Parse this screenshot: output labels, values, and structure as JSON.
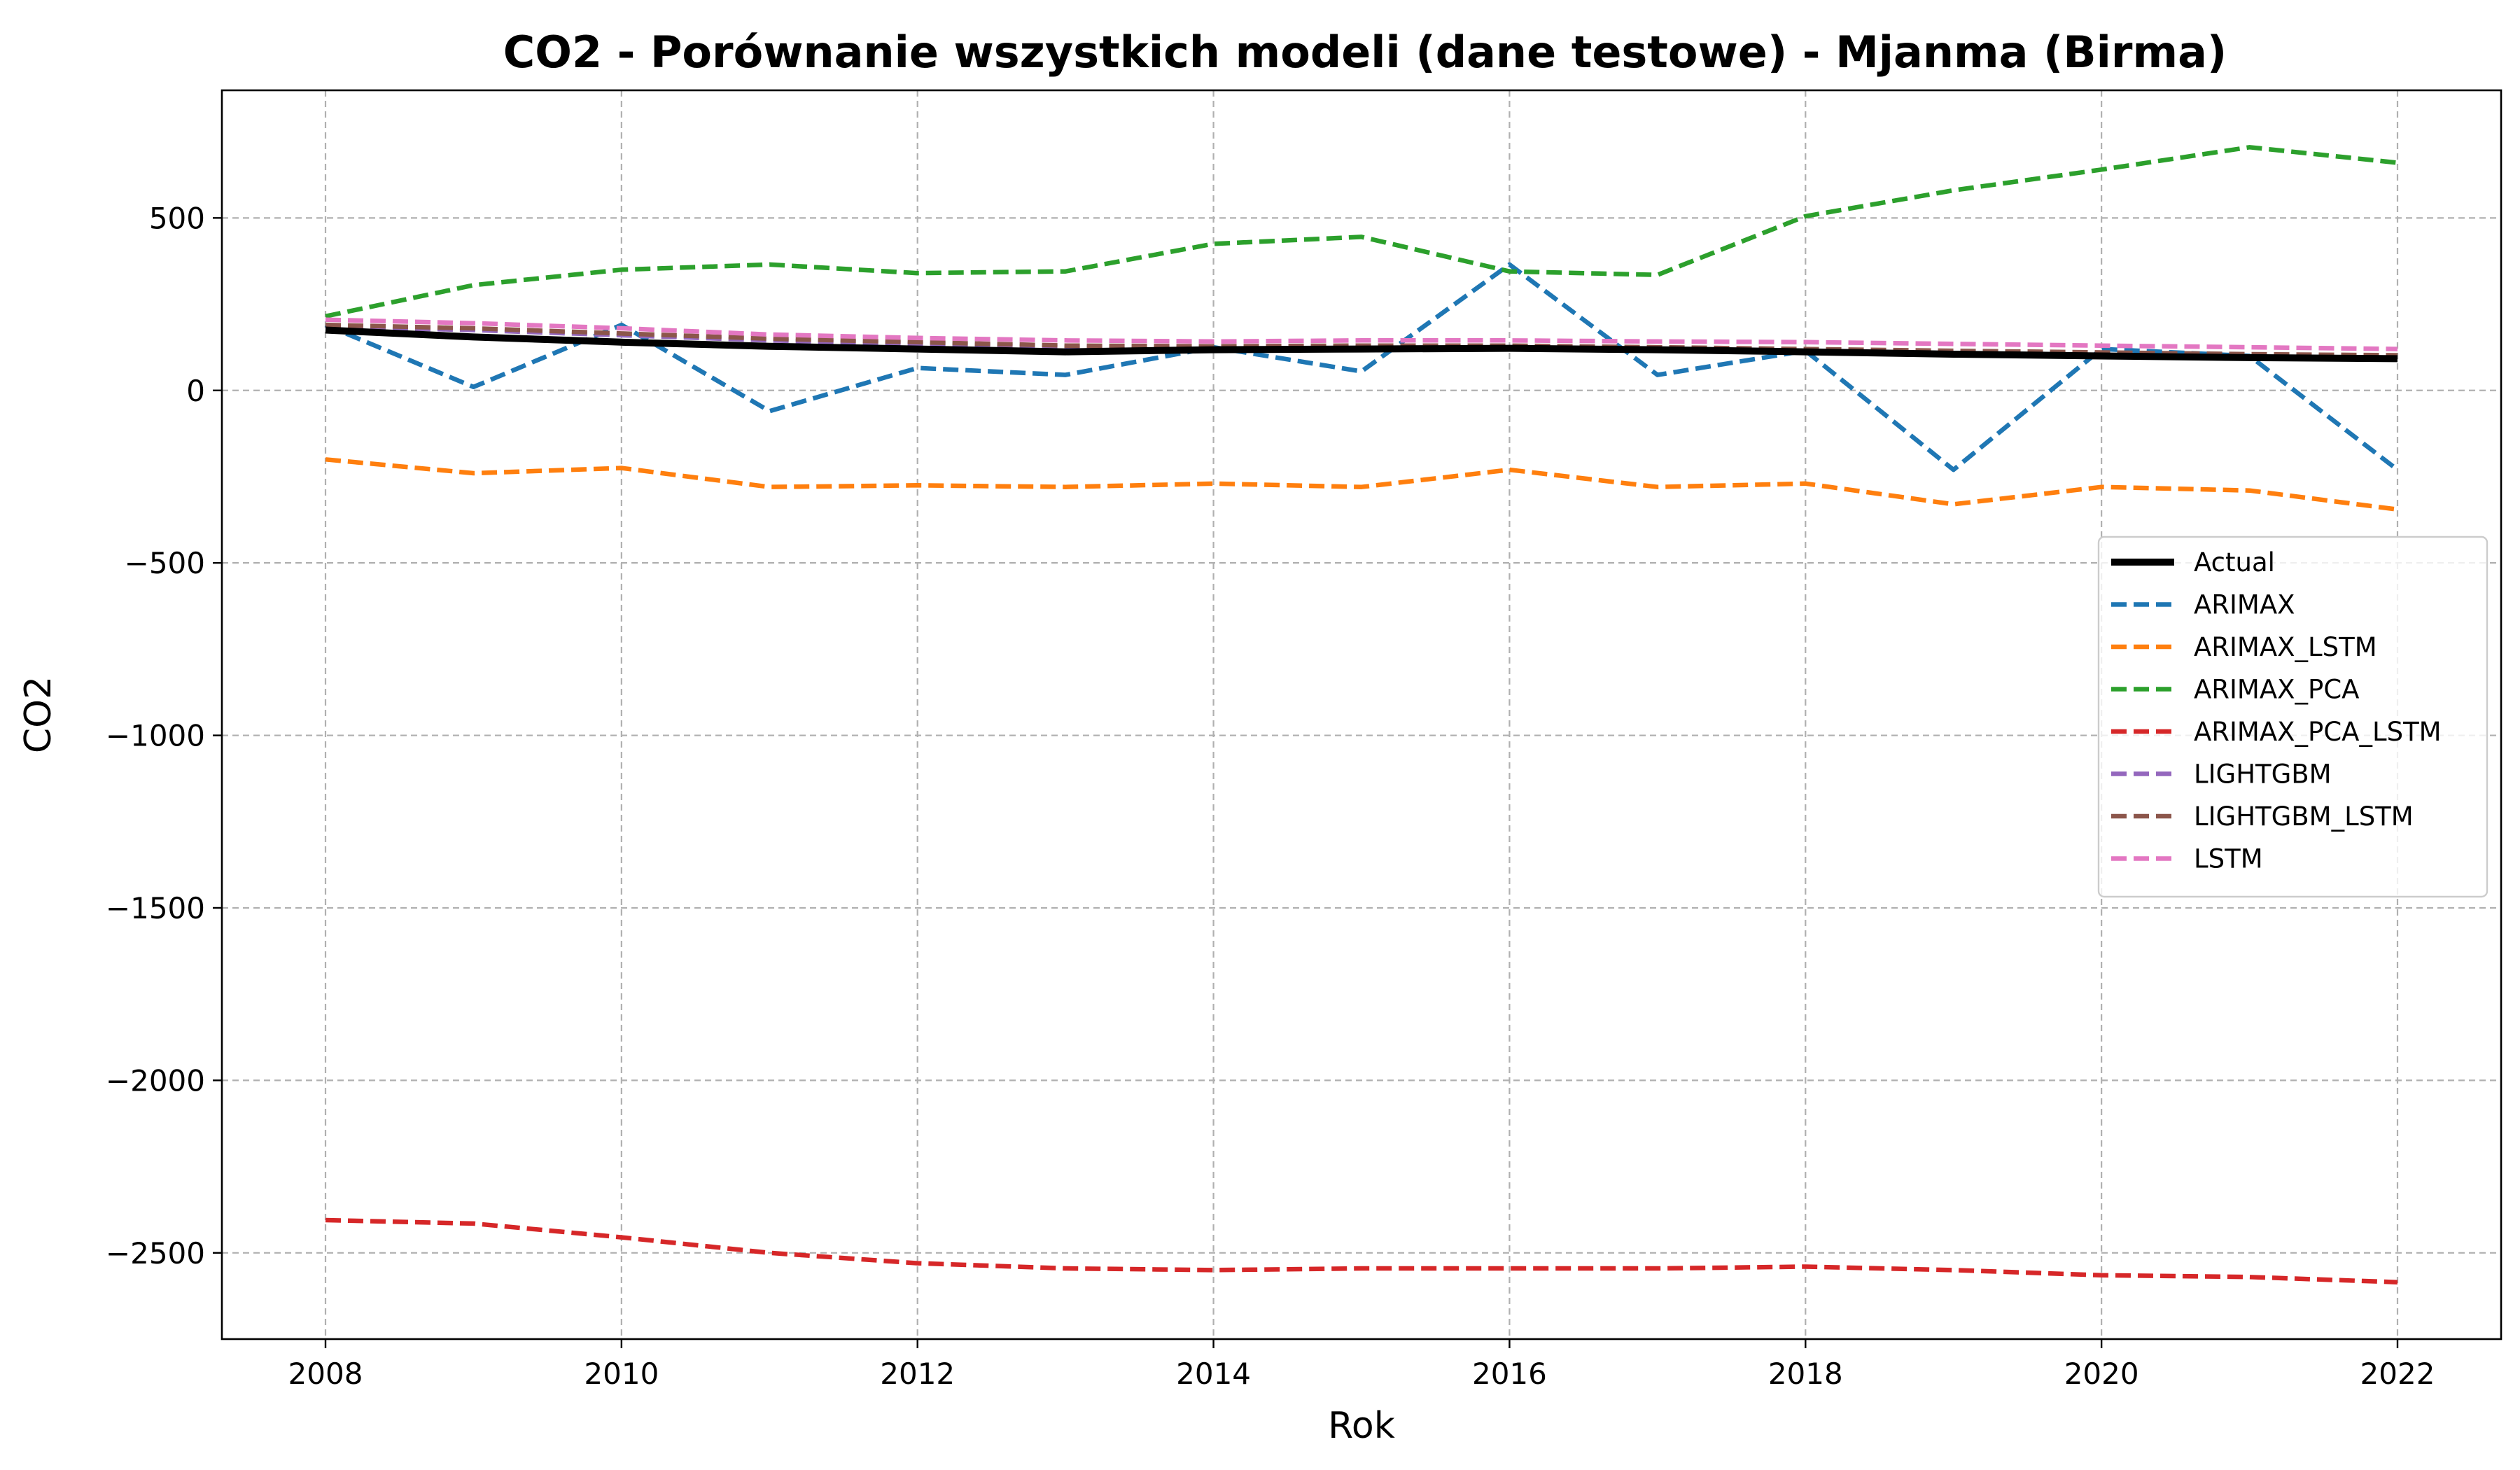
{
  "chart_data": {
    "type": "line",
    "title": "CO2 - Porównanie wszystkich modeli (dane testowe) - Mjanma (Birma)",
    "xlabel": "Rok",
    "ylabel": "CO2",
    "xlim": [
      2007.3,
      2022.7
    ],
    "ylim": [
      -2750,
      870
    ],
    "x_ticks": [
      2008,
      2010,
      2012,
      2014,
      2016,
      2018,
      2020,
      2022
    ],
    "x_tick_labels": [
      "2008",
      "2010",
      "2012",
      "2014",
      "2016",
      "2018",
      "2020",
      "2022"
    ],
    "y_ticks": [
      500,
      0,
      -500,
      -1000,
      -1500,
      -2000,
      -2500
    ],
    "y_tick_labels": [
      "500",
      "0",
      "−500",
      "−1000",
      "−1500",
      "−2000",
      "−2500"
    ],
    "grid": true,
    "legend_position": "right",
    "x": [
      2008,
      2009,
      2010,
      2011,
      2012,
      2013,
      2014,
      2015,
      2016,
      2017,
      2018,
      2019,
      2020,
      2021,
      2022
    ],
    "series": [
      {
        "name": "Actual",
        "color": "#000000",
        "style": "solid",
        "values": [
          175,
          155,
          140,
          128,
          120,
          112,
          118,
          120,
          122,
          118,
          112,
          105,
          100,
          95,
          92
        ]
      },
      {
        "name": "ARIMAX",
        "color": "#1f77b4",
        "style": "dashed",
        "values": [
          190,
          10,
          190,
          -60,
          65,
          45,
          125,
          55,
          365,
          45,
          115,
          -230,
          120,
          100,
          -230
        ]
      },
      {
        "name": "ARIMAX_LSTM",
        "color": "#ff7f0e",
        "style": "dashed",
        "values": [
          -200,
          -240,
          -225,
          -280,
          -275,
          -280,
          -270,
          -280,
          -230,
          -280,
          -270,
          -330,
          -280,
          -290,
          -345
        ]
      },
      {
        "name": "ARIMAX_PCA",
        "color": "#2ca02c",
        "style": "dashed",
        "values": [
          215,
          305,
          350,
          365,
          340,
          345,
          425,
          445,
          345,
          335,
          505,
          580,
          640,
          705,
          660
        ]
      },
      {
        "name": "ARIMAX_PCA_LSTM",
        "color": "#d62728",
        "style": "dashed",
        "values": [
          -2405,
          -2415,
          -2455,
          -2500,
          -2530,
          -2545,
          -2550,
          -2545,
          -2545,
          -2545,
          -2540,
          -2550,
          -2565,
          -2570,
          -2585
        ]
      },
      {
        "name": "LIGHTGBM",
        "color": "#9467bd",
        "style": "dashed",
        "values": [
          185,
          175,
          160,
          145,
          135,
          125,
          122,
          125,
          125,
          120,
          115,
          110,
          105,
          100,
          98
        ]
      },
      {
        "name": "LIGHTGBM_LSTM",
        "color": "#8c564b",
        "style": "dashed",
        "values": [
          190,
          180,
          165,
          150,
          140,
          130,
          128,
          130,
          130,
          125,
          120,
          115,
          110,
          105,
          102
        ]
      },
      {
        "name": "LSTM",
        "color": "#e377c2",
        "style": "dashed",
        "values": [
          205,
          195,
          180,
          162,
          152,
          145,
          142,
          145,
          145,
          142,
          140,
          135,
          130,
          125,
          120
        ]
      }
    ]
  }
}
